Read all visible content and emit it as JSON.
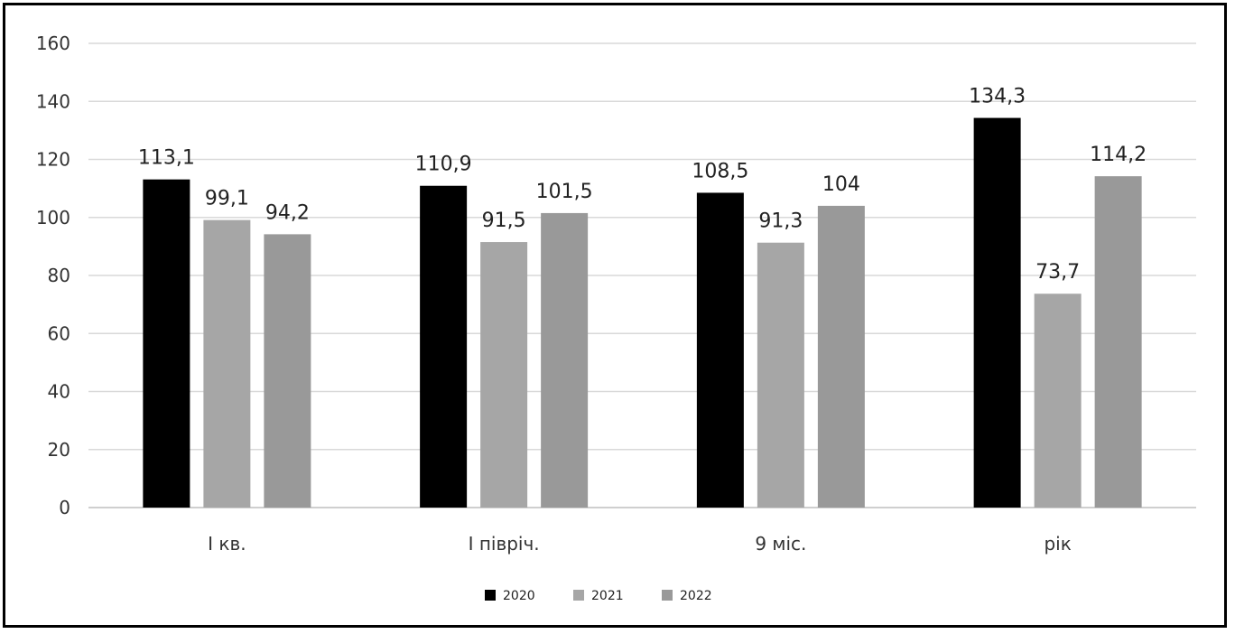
{
  "chart_data": {
    "type": "bar",
    "title": "",
    "xlabel": "",
    "ylabel": "",
    "categories": [
      "І кв.",
      "І півріч.",
      "9 міс.",
      "рік"
    ],
    "series": [
      {
        "name": "2020",
        "values": [
          113.1,
          110.9,
          108.5,
          134.3
        ],
        "labels": [
          "113,1",
          "110,9",
          "108,5",
          "134,3"
        ],
        "color": "#000000"
      },
      {
        "name": "2021",
        "values": [
          99.1,
          91.5,
          91.3,
          73.7
        ],
        "labels": [
          "99,1",
          "91,5",
          "91,3",
          "73,7"
        ],
        "color": "#a6a6a6"
      },
      {
        "name": "2022",
        "values": [
          94.2,
          101.5,
          104,
          114.2
        ],
        "labels": [
          "94,2",
          "101,5",
          "104",
          "114,2"
        ],
        "color": "#999999"
      }
    ],
    "ylim": [
      0,
      160
    ],
    "yticks": [
      "0",
      "20",
      "40",
      "60",
      "80",
      "100",
      "120",
      "140",
      "160"
    ],
    "grid": true,
    "legend_position": "bottom-center"
  }
}
